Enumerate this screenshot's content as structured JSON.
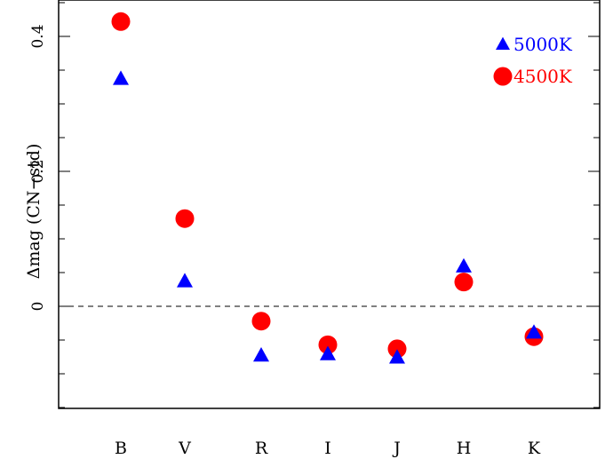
{
  "chart_data": {
    "type": "scatter",
    "title": "",
    "xlabel": "",
    "ylabel": "Δmag (CN−std)",
    "categories": [
      "B",
      "V",
      "R",
      "I",
      "J",
      "H",
      "K"
    ],
    "ylim": [
      -0.15,
      0.45
    ],
    "y_ticks": [
      {
        "value": 0,
        "label": "0"
      },
      {
        "value": 0.2,
        "label": "0.2"
      },
      {
        "value": 0.4,
        "label": "0.4"
      }
    ],
    "reference_line": {
      "y": 0,
      "style": "dashed"
    },
    "legend_position": "top-right",
    "series": [
      {
        "name": "5000K",
        "marker": "triangle",
        "color": "#0000ff",
        "values": [
          0.337,
          0.037,
          -0.073,
          -0.071,
          -0.076,
          0.059,
          -0.039
        ]
      },
      {
        "name": "4500K",
        "marker": "circle",
        "color": "#ff0000",
        "values": [
          0.422,
          0.13,
          -0.022,
          -0.057,
          -0.063,
          0.036,
          -0.045
        ]
      }
    ]
  }
}
